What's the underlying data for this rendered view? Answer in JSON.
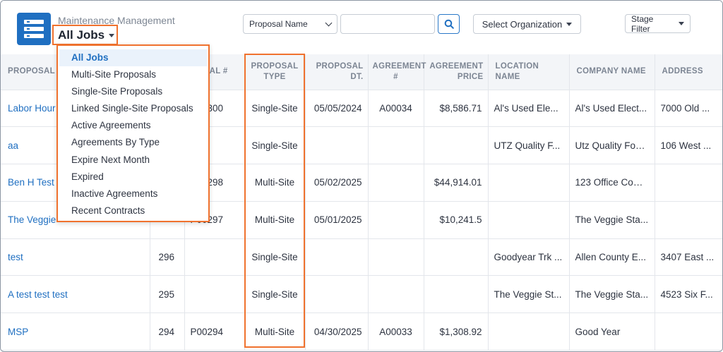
{
  "header": {
    "app_subtitle": "Maintenance Management",
    "view_label": "All Jobs",
    "proposal_select": "Proposal Name",
    "search_value": "",
    "org_select": "Select Organization",
    "stage_filter": "Stage Filter"
  },
  "view_menu": {
    "items": [
      "All Jobs",
      "Multi-Site Proposals",
      "Single-Site Proposals",
      "Linked Single-Site Proposals",
      "Active Agreements",
      "Agreements By Type",
      "Expire Next Month",
      "Expired",
      "Inactive Agreements",
      "Recent Contracts"
    ],
    "active": "All Jobs"
  },
  "table": {
    "headers": {
      "proposal_name": "PROPOSAL N",
      "proposal_num": "POSAL #",
      "proposal_type_1": "PROPOSAL",
      "proposal_type_2": "TYPE",
      "proposal_dt_1": "PROPOSAL",
      "proposal_dt_2": "DT.",
      "agreement_num_1": "AGREEMENT",
      "agreement_num_2": "#",
      "agreement_price_1": "AGREEMENT",
      "agreement_price_2": "PRICE",
      "location_name": "LOCATION NAME",
      "company_name": "COMPANY NAME",
      "address": "ADDRESS"
    },
    "rows": [
      {
        "name": "Labor Hour",
        "id": "",
        "prop_num": "P00300",
        "type": "Single-Site",
        "date": "05/05/2024",
        "agreement": "A00034",
        "price": "$8,586.71",
        "location": "Al's Used Ele...",
        "company": "Al's Used Elect...",
        "address": "7000 Old ..."
      },
      {
        "name": "aa",
        "id": "",
        "prop_num": "",
        "type": "Single-Site",
        "date": "",
        "agreement": "",
        "price": "",
        "location": "UTZ Quality F...",
        "company": "Utz Quality Foo...",
        "address": "106 West ..."
      },
      {
        "name": "Ben H Test",
        "id": "",
        "prop_num": "P00298",
        "type": "Multi-Site",
        "date": "05/02/2025",
        "agreement": "",
        "price": "$44,914.01",
        "location": "",
        "company": "123 Office Com...",
        "address": ""
      },
      {
        "name": "The Veggie",
        "id": "",
        "prop_num": "P00297",
        "type": "Multi-Site",
        "date": "05/01/2025",
        "agreement": "",
        "price": "$10,241.5",
        "location": "",
        "company": "The Veggie Sta...",
        "address": ""
      },
      {
        "name": "test",
        "id": "296",
        "prop_num": "",
        "type": "Single-Site",
        "date": "",
        "agreement": "",
        "price": "",
        "location": "Goodyear Trk ...",
        "company": "Allen County E...",
        "address": "3407 East ..."
      },
      {
        "name": "A test test test",
        "id": "295",
        "prop_num": "",
        "type": "Single-Site",
        "date": "",
        "agreement": "",
        "price": "",
        "location": "The Veggie St...",
        "company": "The Veggie Sta...",
        "address": "4523 Six F..."
      },
      {
        "name": "MSP",
        "id": "294",
        "prop_num": "P00294",
        "type": "Multi-Site",
        "date": "04/30/2025",
        "agreement": "A00033",
        "price": "$1,308.92",
        "location": "",
        "company": "Good Year",
        "address": ""
      }
    ]
  },
  "colors": {
    "accent": "#1f6fc1",
    "highlight": "#f0722e"
  },
  "icons": {
    "logo": "list-stack-icon",
    "search": "search-icon"
  }
}
